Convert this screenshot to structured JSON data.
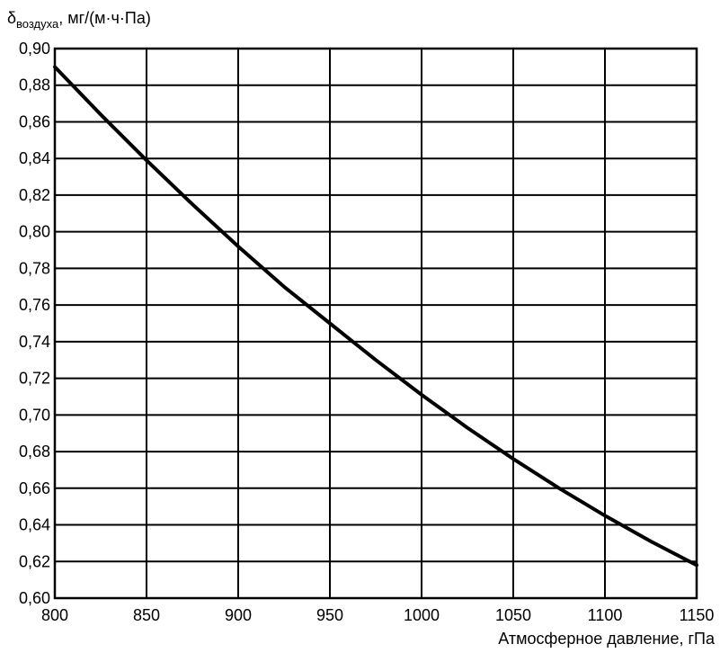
{
  "chart_data": {
    "type": "line",
    "title": "",
    "ylabel_symbol": "δ",
    "ylabel_subscript": "воздуха",
    "ylabel_unit": ", мг/(м·ч·Па)",
    "xlabel": "Атмосферное давление, гПа",
    "xlim": [
      800,
      1150
    ],
    "ylim": [
      0.6,
      0.9
    ],
    "x_ticks": [
      800,
      850,
      900,
      950,
      1000,
      1050,
      1100,
      1150
    ],
    "x_tick_labels": [
      "800",
      "850",
      "900",
      "950",
      "1000",
      "1050",
      "1100",
      "1150"
    ],
    "y_ticks": [
      0.6,
      0.62,
      0.64,
      0.66,
      0.68,
      0.7,
      0.72,
      0.74,
      0.76,
      0.78,
      0.8,
      0.82,
      0.84,
      0.86,
      0.88,
      0.9
    ],
    "y_tick_labels": [
      "0,60",
      "0,62",
      "0,64",
      "0,66",
      "0,68",
      "0,70",
      "0,72",
      "0,74",
      "0,76",
      "0,78",
      "0,80",
      "0,82",
      "0,84",
      "0,86",
      "0,88",
      "0,90"
    ],
    "grid": true,
    "legend": "none",
    "line_color": "#000000",
    "series": [
      {
        "x": [
          800,
          825,
          850,
          875,
          900,
          925,
          950,
          975,
          1000,
          1025,
          1050,
          1075,
          1100,
          1125,
          1150
        ],
        "values": [
          0.89,
          0.864,
          0.839,
          0.815,
          0.792,
          0.77,
          0.75,
          0.73,
          0.711,
          0.693,
          0.676,
          0.66,
          0.645,
          0.631,
          0.618
        ]
      }
    ]
  }
}
